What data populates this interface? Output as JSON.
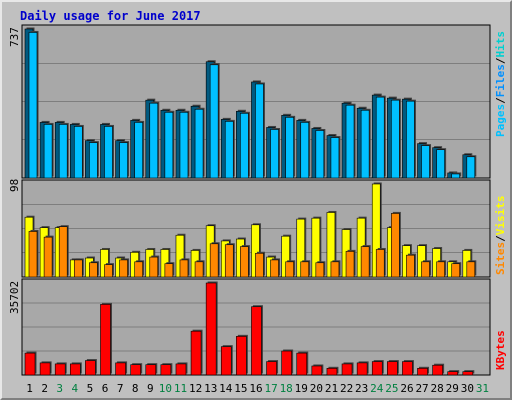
{
  "title": "Daily usage for June 2017",
  "colors": {
    "pages": "#00c0ff",
    "pages_back": "#005a80",
    "files": "#0090ff",
    "hits": "#00d0d0",
    "visits": "#ffff00",
    "sites": "#ff8800",
    "kbytes": "#ff0000",
    "weekend_day": "#008040",
    "weekday": "#000000",
    "panel_bg": "#a8a8a8",
    "frame_bg": "#c0c0c0"
  },
  "legend": {
    "pages": "Pages",
    "files": "Files",
    "hits": "Hits",
    "visits": "Visits",
    "sites": "Sites",
    "kbytes": "KBytes",
    "sep": "/"
  },
  "chart_data": [
    {
      "type": "bar",
      "panel": "hits-files-pages",
      "y_max_label": "737",
      "ylim": [
        0,
        737
      ],
      "categories": [
        "1",
        "2",
        "3",
        "4",
        "5",
        "6",
        "7",
        "8",
        "9",
        "10",
        "11",
        "12",
        "13",
        "14",
        "15",
        "16",
        "17",
        "18",
        "19",
        "20",
        "21",
        "22",
        "23",
        "24",
        "25",
        "26",
        "27",
        "28",
        "29",
        "30",
        "31"
      ],
      "weekend_days": [
        "3",
        "4",
        "10",
        "11",
        "17",
        "18",
        "24",
        "25",
        "31"
      ],
      "series": [
        {
          "name": "Hits",
          "values": [
            737,
            275,
            275,
            265,
            185,
            265,
            185,
            285,
            385,
            335,
            335,
            355,
            575,
            290,
            330,
            475,
            250,
            310,
            285,
            245,
            210,
            370,
            345,
            410,
            395,
            390,
            170,
            150,
            25,
            115,
            0
          ]
        },
        {
          "name": "Files",
          "values": [
            720,
            265,
            265,
            255,
            175,
            255,
            175,
            275,
            370,
            325,
            325,
            340,
            560,
            280,
            320,
            465,
            240,
            300,
            275,
            235,
            200,
            360,
            335,
            400,
            385,
            380,
            160,
            140,
            20,
            105,
            0
          ]
        }
      ]
    },
    {
      "type": "bar",
      "panel": "visits-sites",
      "y_max_label": "98",
      "ylim": [
        0,
        98
      ],
      "categories": [
        "1",
        "2",
        "3",
        "4",
        "5",
        "6",
        "7",
        "8",
        "9",
        "10",
        "11",
        "12",
        "13",
        "14",
        "15",
        "16",
        "17",
        "18",
        "19",
        "20",
        "21",
        "22",
        "23",
        "24",
        "25",
        "26",
        "27",
        "28",
        "29",
        "30",
        "31"
      ],
      "series": [
        {
          "name": "Visits",
          "values": [
            63,
            52,
            52,
            18,
            20,
            29,
            20,
            26,
            29,
            29,
            44,
            28,
            54,
            38,
            40,
            55,
            21,
            43,
            61,
            62,
            68,
            50,
            62,
            98,
            52,
            33,
            33,
            30,
            16,
            28,
            0
          ]
        },
        {
          "name": "Sites",
          "values": [
            48,
            42,
            53,
            18,
            15,
            13,
            18,
            16,
            21,
            14,
            18,
            16,
            35,
            34,
            32,
            25,
            18,
            16,
            16,
            15,
            16,
            27,
            32,
            29,
            67,
            23,
            16,
            16,
            14,
            16,
            0
          ]
        }
      ]
    },
    {
      "type": "bar",
      "panel": "kbytes",
      "y_max_label": "35702",
      "ylim": [
        0,
        35702
      ],
      "categories": [
        "1",
        "2",
        "3",
        "4",
        "5",
        "6",
        "7",
        "8",
        "9",
        "10",
        "11",
        "12",
        "13",
        "14",
        "15",
        "16",
        "17",
        "18",
        "19",
        "20",
        "21",
        "22",
        "23",
        "24",
        "25",
        "26",
        "27",
        "28",
        "29",
        "30",
        "31"
      ],
      "series": [
        {
          "name": "KBytes",
          "values": [
            8500,
            4700,
            4300,
            4300,
            5600,
            27400,
            4700,
            4000,
            4000,
            4000,
            4300,
            17000,
            35702,
            11000,
            15000,
            26500,
            5200,
            9300,
            8500,
            3500,
            2600,
            4300,
            4700,
            5200,
            5200,
            5200,
            2600,
            3800,
            1300,
            1300,
            0
          ]
        }
      ]
    }
  ]
}
